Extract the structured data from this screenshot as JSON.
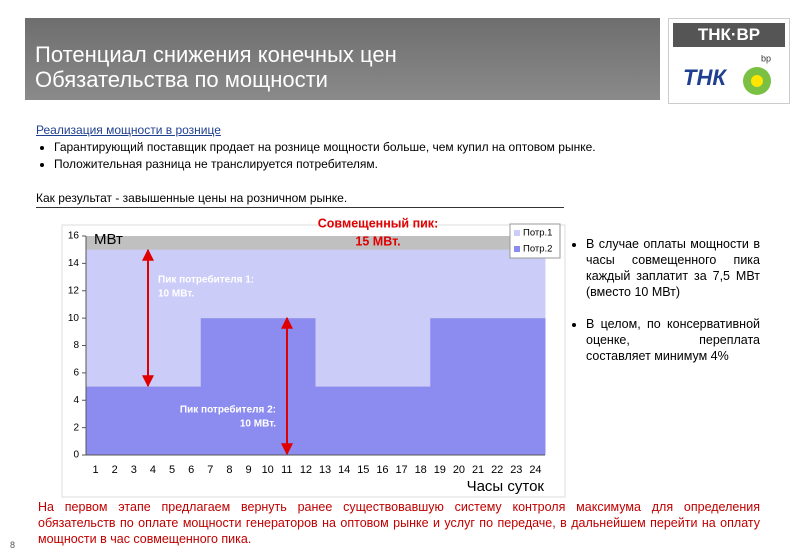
{
  "header": {
    "title_lines": [
      "Потенциал снижения конечных цен",
      "Обязательства по мощности"
    ],
    "logo_text": "ТНК·ВР",
    "logo_bp": "bp"
  },
  "intro": {
    "heading": "Реализация мощности в рознице",
    "bullets": [
      "Гарантирующий поставщик продает на рознице мощности больше, чем купил на оптовом рынке.",
      "Положительная разница не транслируется потребителям."
    ],
    "conclusion": "Как результат - завышенные цены на розничном рынке."
  },
  "chart_data": {
    "type": "bar",
    "stacked": true,
    "y_label": "МВт",
    "x_label": "Часы суток",
    "categories": [
      1,
      2,
      3,
      4,
      5,
      6,
      7,
      8,
      9,
      10,
      11,
      12,
      13,
      14,
      15,
      16,
      17,
      18,
      19,
      20,
      21,
      22,
      23,
      24
    ],
    "series": [
      {
        "name": "Потр.2",
        "color": "#8c8cf0",
        "values": [
          5,
          5,
          5,
          5,
          5,
          5,
          10,
          10,
          10,
          10,
          10,
          10,
          5,
          5,
          5,
          5,
          5,
          5,
          10,
          10,
          10,
          10,
          10,
          10
        ]
      },
      {
        "name": "Потр.1",
        "color": "#ccccf8",
        "values": [
          10,
          10,
          10,
          10,
          10,
          10,
          5,
          5,
          5,
          5,
          5,
          5,
          10,
          10,
          10,
          10,
          10,
          10,
          5,
          5,
          5,
          5,
          5,
          5
        ]
      }
    ],
    "ylim": [
      0,
      16
    ],
    "yticks": [
      0,
      2,
      4,
      6,
      8,
      10,
      12,
      14,
      16
    ],
    "grid": false,
    "legend": "top-right",
    "annotations": {
      "combined_peak": [
        "Совмещенный пик:",
        "15 МВт."
      ],
      "peak_1": [
        "Пик потребителя 1:",
        "10 МВт."
      ],
      "peak_2": [
        "Пик потребителя 2:",
        "10 МВт."
      ]
    }
  },
  "side_bullets": [
    "В случае оплаты мощности в часы совмещенного пика каждый заплатит за 7,5 МВт (вместо 10 МВт)",
    "В целом, по консервативной оценке, переплата составляет минимум 4%"
  ],
  "footer": {
    "text": "На первом этапе предлагаем вернуть ранее существовавшую систему контроля максимума для определения обязательств по оплате мощности генераторов на оптовом рынке и услуг по передаче, в дальнейшем перейти на оплату мощности в час совмещенного пика.",
    "page_number": "8"
  }
}
